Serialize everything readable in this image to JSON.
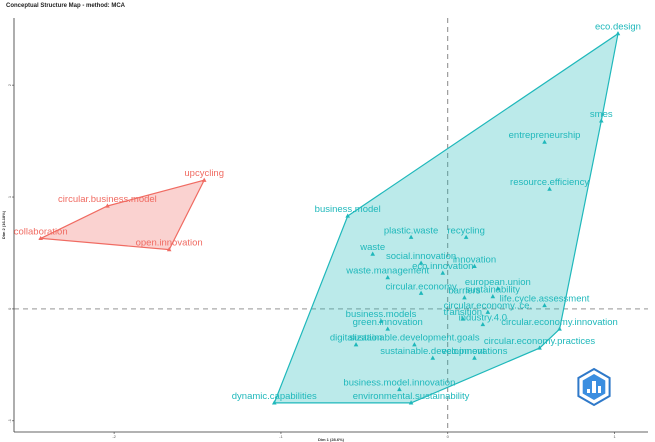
{
  "title": "Conceptual Structure Map - method: MCA",
  "chart_data": {
    "type": "scatter",
    "title": "Conceptual Structure Map - method: MCA",
    "xlabel": "Dim 1 (28.6%)",
    "ylabel": "Dim 2 (16.18%)",
    "xlim": [
      -2.6,
      1.2
    ],
    "ylim": [
      -1.1,
      2.6
    ],
    "x_ticks": [
      -2,
      -1,
      0,
      1
    ],
    "y_ticks": [
      -1,
      0,
      1,
      2
    ],
    "reference_lines": {
      "x": 0,
      "y": 0
    },
    "grid": false,
    "colors": {
      "cluster_1": "#f06b62",
      "cluster_2": "#1fb8bb"
    },
    "series": [
      {
        "cluster": 1,
        "color": "#f06b62",
        "points": [
          {
            "label": "upcycling",
            "x": -1.46,
            "y": 1.15
          },
          {
            "label": "circular.business.model",
            "x": -2.04,
            "y": 0.92
          },
          {
            "label": "collaboration",
            "x": -2.44,
            "y": 0.63
          },
          {
            "label": "open.innovation",
            "x": -1.67,
            "y": 0.53
          }
        ]
      },
      {
        "cluster": 2,
        "color": "#1fb8bb",
        "points": [
          {
            "label": "eco.design",
            "x": 1.02,
            "y": 2.46
          },
          {
            "label": "smes",
            "x": 0.92,
            "y": 1.68
          },
          {
            "label": "entrepreneurship",
            "x": 0.58,
            "y": 1.49
          },
          {
            "label": "resource.efficiency",
            "x": 0.61,
            "y": 1.07
          },
          {
            "label": "business.model",
            "x": -0.6,
            "y": 0.83
          },
          {
            "label": "plastic.waste",
            "x": -0.22,
            "y": 0.64
          },
          {
            "label": "recycling",
            "x": 0.11,
            "y": 0.64
          },
          {
            "label": "waste",
            "x": -0.45,
            "y": 0.49
          },
          {
            "label": "social.innovation",
            "x": -0.16,
            "y": 0.41
          },
          {
            "label": "innovation",
            "x": 0.16,
            "y": 0.38
          },
          {
            "label": "waste.management",
            "x": -0.36,
            "y": 0.28
          },
          {
            "label": "eco.innovation",
            "x": -0.03,
            "y": 0.32
          },
          {
            "label": "european.union",
            "x": 0.3,
            "y": 0.18
          },
          {
            "label": "circular.economy",
            "x": -0.16,
            "y": 0.14
          },
          {
            "label": "barriers",
            "x": 0.1,
            "y": 0.1
          },
          {
            "label": "sustainability",
            "x": 0.27,
            "y": 0.11
          },
          {
            "label": "life.cycle.assessment",
            "x": 0.58,
            "y": 0.03
          },
          {
            "label": "circular.economy..ce.",
            "x": 0.24,
            "y": -0.03
          },
          {
            "label": "business.models",
            "x": -0.4,
            "y": -0.11
          },
          {
            "label": "transition",
            "x": 0.09,
            "y": -0.09
          },
          {
            "label": "green.innovation",
            "x": -0.36,
            "y": -0.18
          },
          {
            "label": "industry.4.0",
            "x": 0.21,
            "y": -0.14
          },
          {
            "label": "circular.economy.innovation",
            "x": 0.67,
            "y": -0.18
          },
          {
            "label": "digitalization",
            "x": -0.55,
            "y": -0.32
          },
          {
            "label": "sustainable.development.goals",
            "x": -0.2,
            "y": -0.32
          },
          {
            "label": "circular.economy.practices",
            "x": 0.55,
            "y": -0.35
          },
          {
            "label": "sustainable.development",
            "x": -0.09,
            "y": -0.44
          },
          {
            "label": "eco.innovations",
            "x": 0.16,
            "y": -0.44
          },
          {
            "label": "business.model.innovation",
            "x": -0.29,
            "y": -0.72
          },
          {
            "label": "dynamic.capabilities",
            "x": -1.04,
            "y": -0.84
          },
          {
            "label": "environmental.sustainability",
            "x": -0.22,
            "y": -0.84
          }
        ]
      }
    ]
  }
}
